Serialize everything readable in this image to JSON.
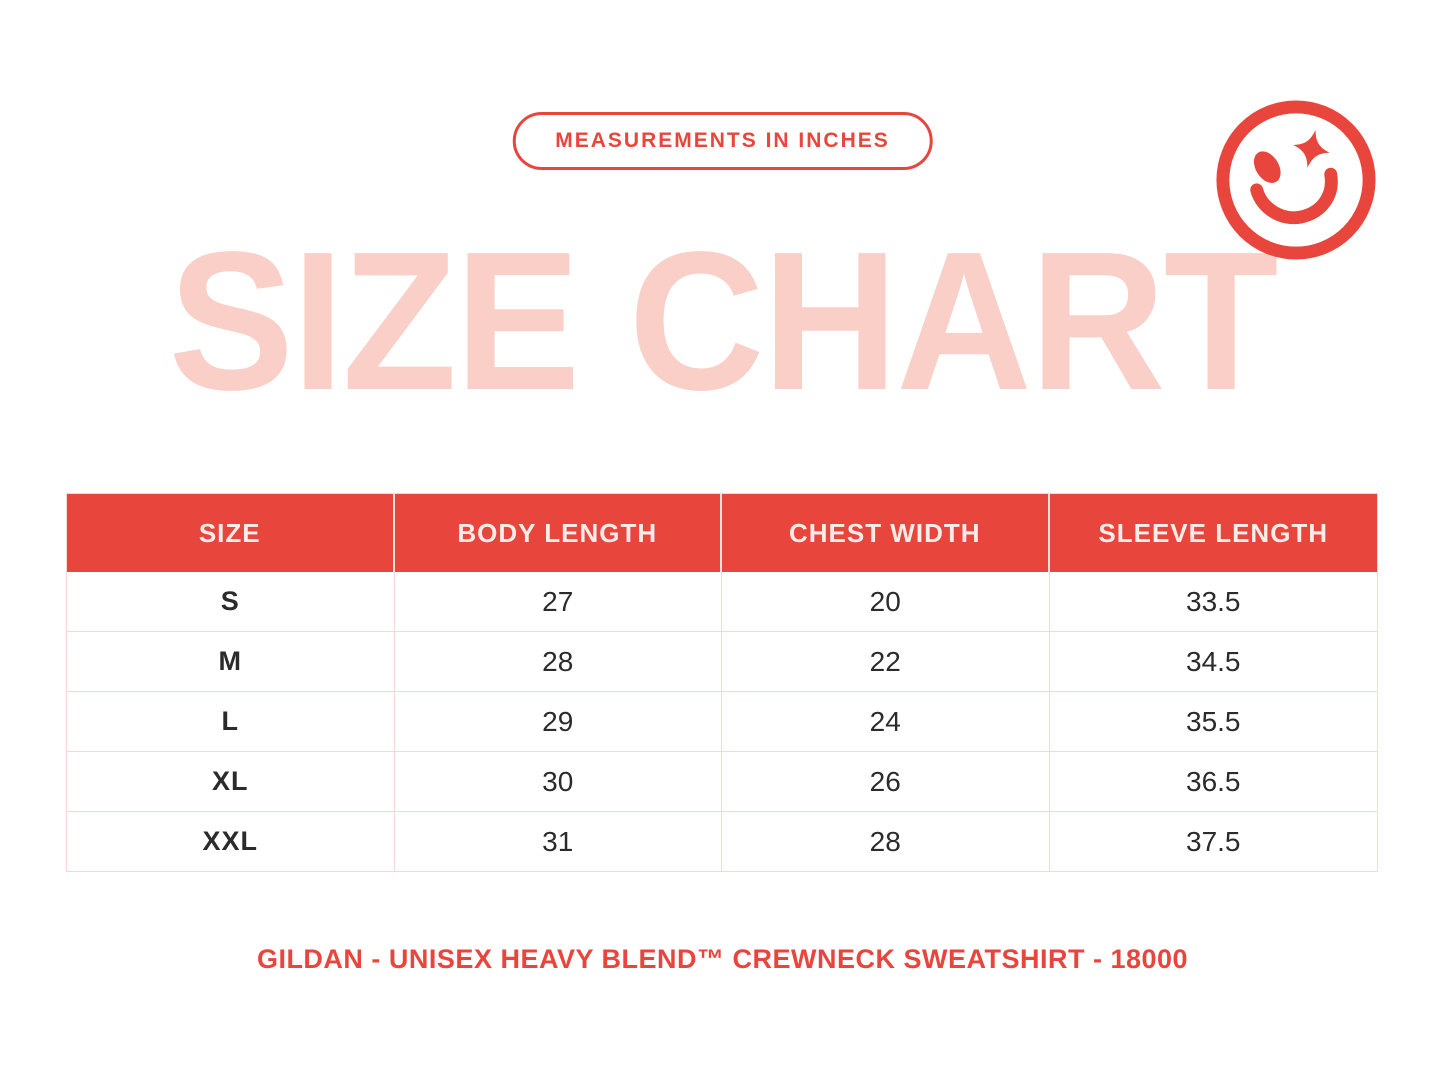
{
  "badge": {
    "label": "MEASUREMENTS IN INCHES"
  },
  "title": "SIZE CHART",
  "footer": {
    "label": "GILDAN - UNISEX HEAVY BLEND™ CREWNECK SWEATSHIRT - 18000"
  },
  "colors": {
    "accent_red": "#E8463D",
    "title_pink": "#F9CFC8",
    "grid_pink": "#F6D8D2",
    "header_text": "#FAEDE9",
    "body_text": "#2B2B2B"
  },
  "chart_data": {
    "type": "table",
    "title": "SIZE CHART",
    "subtitle": "MEASUREMENTS IN INCHES",
    "columns": [
      "SIZE",
      "BODY LENGTH",
      "CHEST WIDTH",
      "SLEEVE LENGTH"
    ],
    "rows": [
      [
        "S",
        "27",
        "20",
        "33.5"
      ],
      [
        "M",
        "28",
        "22",
        "34.5"
      ],
      [
        "L",
        "29",
        "24",
        "35.5"
      ],
      [
        "XL",
        "30",
        "26",
        "36.5"
      ],
      [
        "XXL",
        "31",
        "28",
        "37.5"
      ]
    ],
    "footnote": "GILDAN - UNISEX HEAVY BLEND™ CREWNECK SWEATSHIRT - 18000"
  }
}
